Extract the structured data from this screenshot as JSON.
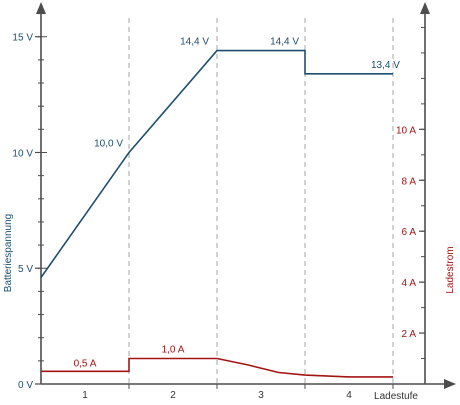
{
  "chart_data": {
    "type": "line",
    "colors": {
      "voltage": "#1f4f6e",
      "current": "#a31515",
      "axis": "#4d4d4d",
      "divider": "#a6a6a6"
    },
    "xlabel": "Ladestufe",
    "ylabel_left": "Batteriespannung",
    "ylabel_right": "Ladestrom",
    "ylim_left": [
      0,
      16.5
    ],
    "ylim_right": [
      0,
      15
    ],
    "xlim": [
      0,
      4
    ],
    "stages": [
      {
        "label": "1",
        "x_start": 0,
        "x_end": 1
      },
      {
        "label": "2",
        "x_start": 1,
        "x_end": 2
      },
      {
        "label": "3",
        "x_start": 2,
        "x_end": 3
      },
      {
        "label": "4",
        "x_start": 3,
        "x_end": 4
      }
    ],
    "left_ticks": [
      {
        "value": 0,
        "label": "0 V"
      },
      {
        "value": 5,
        "label": "5 V"
      },
      {
        "value": 10,
        "label": "10 V"
      },
      {
        "value": 15,
        "label": "15 V"
      }
    ],
    "right_ticks": [
      {
        "value": 2,
        "label": "2 A"
      },
      {
        "value": 4,
        "label": "4 A"
      },
      {
        "value": 6,
        "label": "6 A"
      },
      {
        "value": 8,
        "label": "8 A"
      },
      {
        "value": 10,
        "label": "10 A"
      }
    ],
    "series": [
      {
        "name": "Batteriespannung",
        "axis": "left",
        "points": [
          [
            0,
            4.6
          ],
          [
            1,
            10.0
          ],
          [
            2,
            14.4
          ],
          [
            3,
            14.4
          ],
          [
            3,
            13.4
          ],
          [
            4,
            13.4
          ]
        ]
      },
      {
        "name": "Ladestrom",
        "axis": "right",
        "points": [
          [
            0,
            0.5
          ],
          [
            1,
            0.5
          ],
          [
            1,
            1.0
          ],
          [
            2,
            1.0
          ],
          [
            2.35,
            0.75
          ],
          [
            2.7,
            0.45
          ],
          [
            3,
            0.35
          ],
          [
            3.5,
            0.28
          ],
          [
            4,
            0.28
          ]
        ]
      }
    ],
    "annotations": [
      {
        "text": "10,0 V",
        "series": "voltage",
        "x": 1,
        "y": 10.0,
        "anchor": "end",
        "dx": -6,
        "dy": -6
      },
      {
        "text": "14,4 V",
        "series": "voltage",
        "x": 2,
        "y": 14.4,
        "anchor": "end",
        "dx": -8,
        "dy": -6
      },
      {
        "text": "14,4 V",
        "series": "voltage",
        "x": 3,
        "y": 14.4,
        "anchor": "end",
        "dx": -6,
        "dy": -6
      },
      {
        "text": "13,4 V",
        "series": "voltage",
        "x": 3.75,
        "y": 13.4,
        "anchor": "start",
        "dx": 0,
        "dy": -6
      },
      {
        "text": "0,5 A",
        "series": "current",
        "x": 0.5,
        "y": 0.5,
        "anchor": "middle",
        "dx": 0,
        "dy": -5
      },
      {
        "text": "1,0 A",
        "series": "current",
        "x": 1.5,
        "y": 1.0,
        "anchor": "middle",
        "dx": 0,
        "dy": -6
      }
    ]
  }
}
